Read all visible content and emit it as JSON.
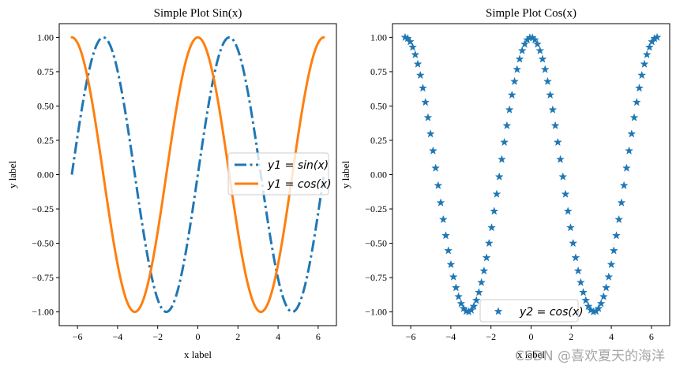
{
  "chart_data": [
    {
      "type": "line",
      "title": "Simple Plot Sin(x)",
      "xlabel": "x label",
      "ylabel": "y label",
      "xlim": [
        -6.91,
        6.91
      ],
      "ylim": [
        -1.1,
        1.1
      ],
      "xticks": [
        -6,
        -4,
        -2,
        0,
        2,
        4,
        6
      ],
      "xtick_labels": [
        "−6",
        "−4",
        "−2",
        "0",
        "2",
        "4",
        "6"
      ],
      "yticks": [
        -1.0,
        -0.75,
        -0.5,
        -0.25,
        0.0,
        0.25,
        0.5,
        0.75,
        1.0
      ],
      "ytick_labels": [
        "−1.00",
        "−0.75",
        "−0.50",
        "−0.25",
        "0.00",
        "0.25",
        "0.50",
        "0.75",
        "1.00"
      ],
      "grid": false,
      "legend_position": "center-right",
      "series": [
        {
          "name": "y1 = sin(x)",
          "func": "sin",
          "x_range": [
            -6.283,
            6.283
          ],
          "points": 256,
          "color": "#1f77b4",
          "style": "dash-dot",
          "width": 3
        },
        {
          "name": "y1 = cos(x)",
          "func": "cos",
          "x_range": [
            -6.283,
            6.283
          ],
          "points": 256,
          "color": "#ff7f0e",
          "style": "solid",
          "width": 3
        }
      ],
      "legend": [
        {
          "func": "y1",
          "rhs": "sin(x)"
        },
        {
          "func": "y1",
          "rhs": "cos(x)"
        }
      ]
    },
    {
      "type": "scatter",
      "title": "Simple Plot Cos(x)",
      "xlabel": "x label",
      "ylabel": "y label",
      "xlim": [
        -6.91,
        6.91
      ],
      "ylim": [
        -1.1,
        1.1
      ],
      "xticks": [
        -6,
        -4,
        -2,
        0,
        2,
        4,
        6
      ],
      "xtick_labels": [
        "−6",
        "−4",
        "−2",
        "0",
        "2",
        "4",
        "6"
      ],
      "yticks": [
        -1.0,
        -0.75,
        -0.5,
        -0.25,
        0.0,
        0.25,
        0.5,
        0.75,
        1.0
      ],
      "ytick_labels": [
        "−1.00",
        "−0.75",
        "−0.50",
        "−0.25",
        "0.00",
        "0.25",
        "0.50",
        "0.75",
        "1.00"
      ],
      "grid": false,
      "legend_position": "lower-center",
      "series": [
        {
          "name": "y2 = cos(x)",
          "func": "cos",
          "x_range": [
            -6.283,
            6.283
          ],
          "points": 100,
          "color": "#1f77b4",
          "marker": "star"
        }
      ],
      "legend": [
        {
          "func": "y2",
          "rhs": "cos(x)"
        }
      ]
    }
  ],
  "watermark": "CSDN @喜欢夏天的海洋"
}
